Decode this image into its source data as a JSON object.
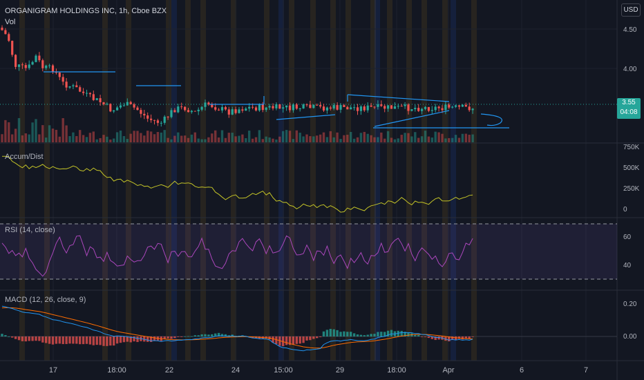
{
  "header": {
    "symbol_line": "ORGANIGRAM HOLDINGS INC, 1h, Cboe BZX",
    "vol_label": "Vol",
    "currency": "USD"
  },
  "price_tag": {
    "price": "3.55",
    "countdown": "04:08"
  },
  "axes": {
    "price_ticks": [
      "4.50",
      "4.00",
      "3.55"
    ],
    "ad_ticks": [
      "750K",
      "500K",
      "250K",
      "0"
    ],
    "rsi_ticks": [
      "60",
      "40"
    ],
    "macd_ticks": [
      "0.20",
      "0.00"
    ],
    "time_labels": [
      "17",
      "18:00",
      "22",
      "24",
      "15:00",
      "29",
      "18:00",
      "Apr",
      "6",
      "7"
    ]
  },
  "indicators": {
    "ad_label": "Accum/Dist",
    "rsi_label": "RSI (14, close)",
    "macd_label": "MACD (12, 26, close, 9)"
  },
  "colors": {
    "background": "#131722",
    "up": "#26a69a",
    "down": "#ef5350",
    "ad_line": "#c3c327",
    "rsi_line": "#ab47bc",
    "macd_line": "#2196f3",
    "signal_line": "#ff6d00",
    "drawing": "#2196f3",
    "price_tag": "#26a69a"
  }
}
